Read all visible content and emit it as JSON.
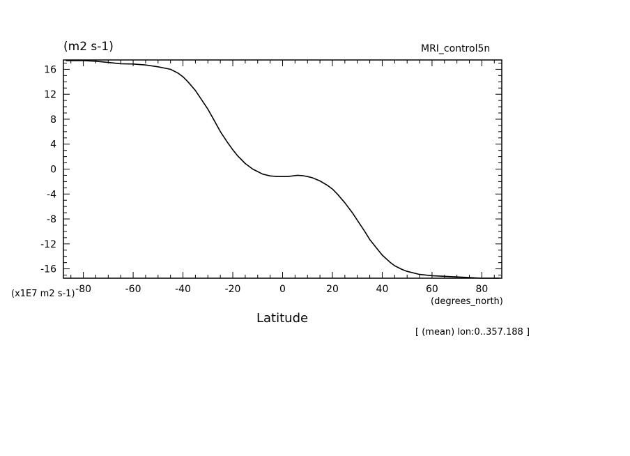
{
  "page": {
    "units_top": "(m2 s-1)",
    "dataset": "MRI_control5n",
    "scale_label": "(x1E7 m2 s-1)",
    "x_units": "(degrees_north)",
    "note": "[ (mean) lon:0..357.188 ]"
  },
  "chart_data": {
    "type": "line",
    "title": "",
    "xlabel": "Latitude",
    "ylabel": "(m2 s-1)",
    "xlim": [
      -88,
      88
    ],
    "ylim": [
      -17.5,
      17.5
    ],
    "x_ticks": [
      -80,
      -60,
      -40,
      -20,
      0,
      20,
      40,
      60,
      80
    ],
    "x_tick_labels": [
      "-80",
      "-60",
      "-40",
      "-20",
      "0",
      "20",
      "40",
      "60",
      "80"
    ],
    "y_ticks": [
      16,
      12,
      8,
      4,
      0,
      -4,
      -8,
      -12,
      -16
    ],
    "y_tick_labels": [
      "16",
      "12",
      "8",
      "4",
      "0",
      "-4",
      "-8",
      "-12",
      "-16"
    ],
    "grid": false,
    "line_color": "#000000",
    "series": [
      {
        "x": [
          -87,
          -80,
          -75,
          -70,
          -65,
          -60,
          -55,
          -50,
          -45,
          -42,
          -40,
          -38,
          -35,
          -33,
          -30,
          -28,
          -25,
          -22,
          -20,
          -18,
          -15,
          -12,
          -10,
          -8,
          -5,
          -2,
          0,
          2,
          4,
          6,
          8,
          10,
          12,
          15,
          18,
          20,
          22,
          25,
          28,
          30,
          33,
          35,
          38,
          40,
          43,
          45,
          48,
          50,
          55,
          60,
          65,
          70,
          75,
          80,
          87
        ],
        "y": [
          17.4,
          17.4,
          17.3,
          17.1,
          16.9,
          16.85,
          16.7,
          16.4,
          16.0,
          15.4,
          14.8,
          14.0,
          12.6,
          11.4,
          9.6,
          8.2,
          6.0,
          4.2,
          3.1,
          2.1,
          0.9,
          0.0,
          -0.4,
          -0.8,
          -1.1,
          -1.2,
          -1.2,
          -1.2,
          -1.1,
          -1.0,
          -1.05,
          -1.2,
          -1.4,
          -1.9,
          -2.6,
          -3.2,
          -4.0,
          -5.4,
          -7.0,
          -8.2,
          -10.0,
          -11.3,
          -12.8,
          -13.8,
          -14.9,
          -15.5,
          -16.1,
          -16.4,
          -16.9,
          -17.1,
          -17.2,
          -17.3,
          -17.4,
          -17.5,
          -17.5
        ]
      }
    ]
  }
}
